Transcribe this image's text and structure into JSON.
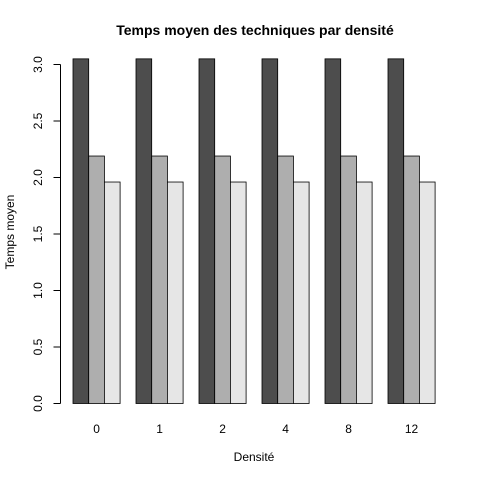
{
  "chart_data": {
    "type": "bar",
    "title": "Temps moyen des techniques par densité",
    "xlabel": "Densité",
    "ylabel": "Temps moyen",
    "categories": [
      "0",
      "1",
      "2",
      "4",
      "8",
      "12"
    ],
    "series": [
      {
        "values": [
          3.05,
          3.05,
          3.05,
          3.05,
          3.05,
          3.05
        ],
        "color": "#4d4d4d"
      },
      {
        "values": [
          2.19,
          2.19,
          2.19,
          2.19,
          2.19,
          2.19
        ],
        "color": "#aeaeae"
      },
      {
        "values": [
          1.96,
          1.96,
          1.96,
          1.96,
          1.96,
          1.96
        ],
        "color": "#e6e6e6"
      }
    ],
    "ylim": [
      0,
      3.0
    ],
    "yticks": [
      "0.0",
      "0.5",
      "1.0",
      "1.5",
      "2.0",
      "2.5",
      "3.0"
    ],
    "grid": false,
    "legend": "none"
  }
}
